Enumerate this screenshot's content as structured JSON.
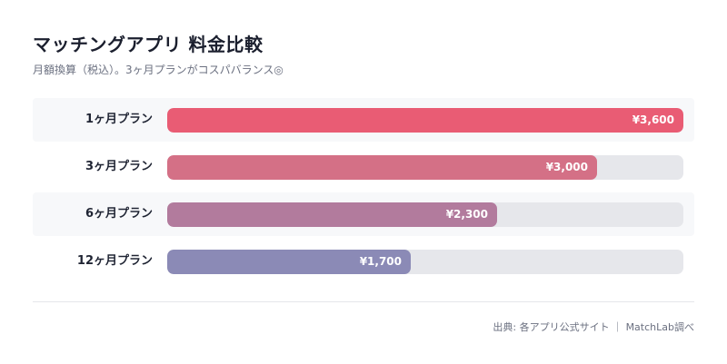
{
  "header": {
    "title": "マッチングアプリ 料金比較",
    "subtitle": "月額換算（税込）。3ヶ月プランがコスパバランス◎"
  },
  "footer": {
    "source": "出典: 各アプリ公式サイト ｜ MatchLab調べ"
  },
  "chart_data": {
    "type": "bar",
    "orientation": "horizontal",
    "title": "マッチングアプリ 料金比較",
    "subtitle": "月額換算（税込）。3ヶ月プランがコスパバランス◎",
    "categories": [
      "1ヶ月プラン",
      "3ヶ月プラン",
      "6ヶ月プラン",
      "12ヶ月プラン"
    ],
    "values": [
      3600,
      3000,
      2300,
      1700
    ],
    "value_labels": [
      "¥3,600",
      "¥3,000",
      "¥2,300",
      "¥1,700"
    ],
    "xlim": [
      0,
      3600
    ],
    "grid": false,
    "colors": [
      "#e95c74",
      "#d47086",
      "#b27b9d",
      "#8b8ab6"
    ],
    "track_color": "#e6e7eb"
  }
}
